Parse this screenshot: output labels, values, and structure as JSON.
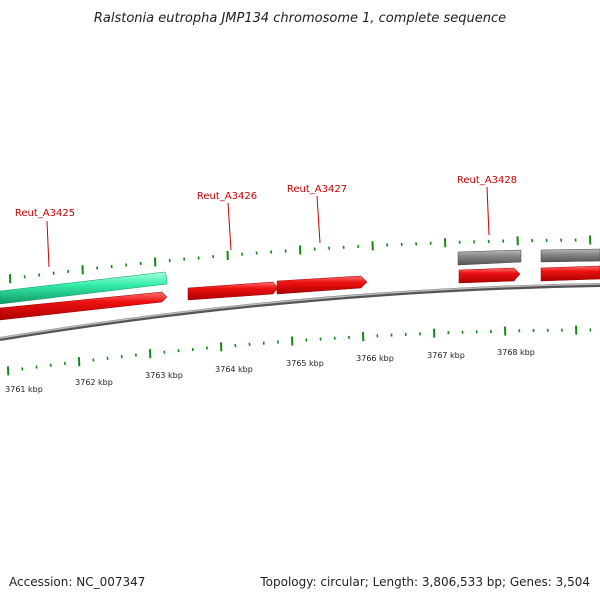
{
  "title": "Ralstonia eutropha JMP134 chromosome 1, complete sequence",
  "genes": [
    {
      "label": "Reut_A3425"
    },
    {
      "label": "Reut_A3426"
    },
    {
      "label": "Reut_A3427"
    },
    {
      "label": "Reut_A3428"
    }
  ],
  "scale_labels": [
    "3761 kbp",
    "3762 kbp",
    "3763 kbp",
    "3764 kbp",
    "3765 kbp",
    "3766 kbp",
    "3767 kbp",
    "3768 kbp"
  ],
  "footer": {
    "accession": "Accession: NC_007347",
    "stats": "Topology: circular; Length: 3,806,533 bp; Genes: 3,504"
  },
  "colors": {
    "gene": "#ee1111",
    "highlight": "#33eeaa",
    "other_feature": "#777777",
    "backbone": "#888888",
    "ticks": "#118811",
    "label": "#cc0000"
  }
}
